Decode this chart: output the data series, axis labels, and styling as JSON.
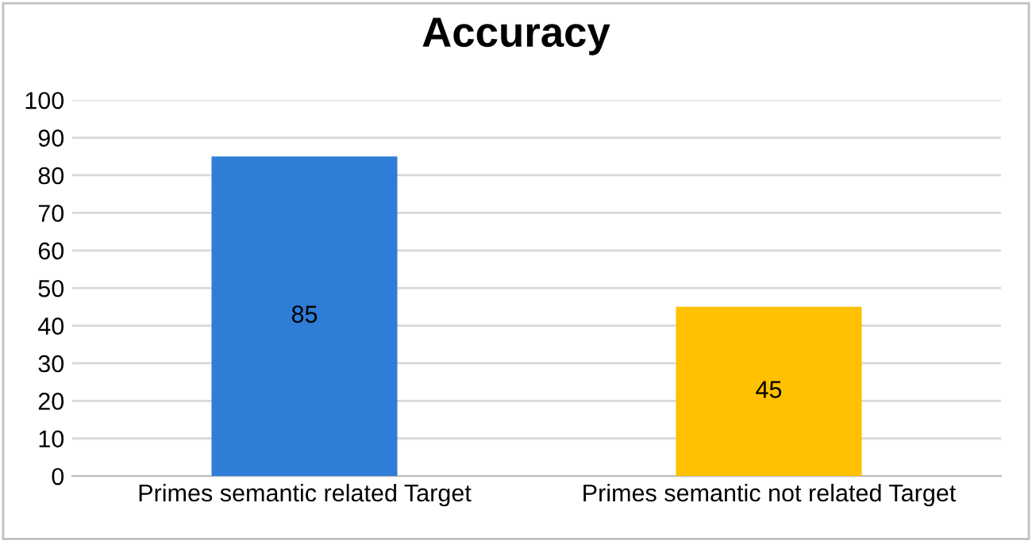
{
  "chart_data": {
    "type": "bar",
    "title": "Accuracy",
    "categories": [
      "Primes semantic related Target",
      "Primes semantic not related Target"
    ],
    "values": [
      85,
      45
    ],
    "colors": [
      "#2e7dd6",
      "#ffc000"
    ],
    "ylim": [
      0,
      100
    ],
    "yticks": [
      0,
      10,
      20,
      30,
      40,
      50,
      60,
      70,
      80,
      90,
      100
    ],
    "grid": "y",
    "data_labels": true,
    "legend": false
  }
}
